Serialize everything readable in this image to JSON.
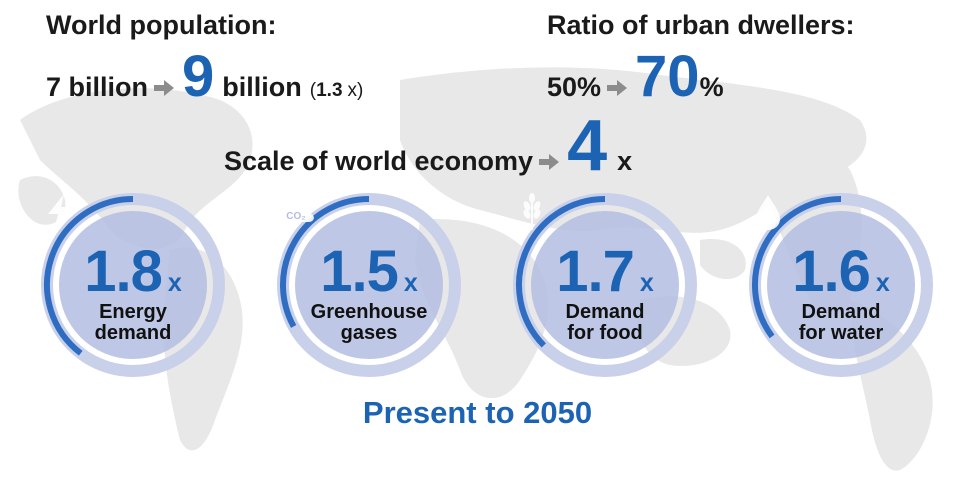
{
  "population": {
    "title": "World population:",
    "from": "7 billion",
    "to_num": "9",
    "to_unit": "billion",
    "factor_num": "1.3",
    "factor_open": "(",
    "factor_x": "x)"
  },
  "urban": {
    "title": "Ratio of urban dwellers:",
    "from": "50%",
    "to_num": "70",
    "to_unit": "%"
  },
  "economy": {
    "label": "Scale of world economy",
    "value": "4",
    "unit": "x"
  },
  "metrics": [
    {
      "value": "1.8",
      "unit": "x",
      "label_line1": "Energy",
      "label_line2": "demand",
      "icon": "lightning-icon",
      "progress": 0.18
    },
    {
      "value": "1.5",
      "unit": "x",
      "label_line1": "Greenhouse",
      "label_line2": "gases",
      "icon": "co2-cloud-icon",
      "icon_text": "CO₂",
      "progress": 0.15
    },
    {
      "value": "1.7",
      "unit": "x",
      "label_line1": "Demand",
      "label_line2": "for food",
      "icon": "wheat-icon",
      "progress": 0.17
    },
    {
      "value": "1.6",
      "unit": "x",
      "label_line1": "Demand",
      "label_line2": "for water",
      "icon": "water-drop-icon",
      "progress": 0.16
    }
  ],
  "footer": "Present to 2050",
  "colors": {
    "accent": "#1d63b4",
    "ring_track": "#c8d0ea",
    "ring_fill": "#b3bde0",
    "ring_progress": "#2f6dc2",
    "map": "#e6e6e6",
    "arrow": "#8c8c8c"
  }
}
